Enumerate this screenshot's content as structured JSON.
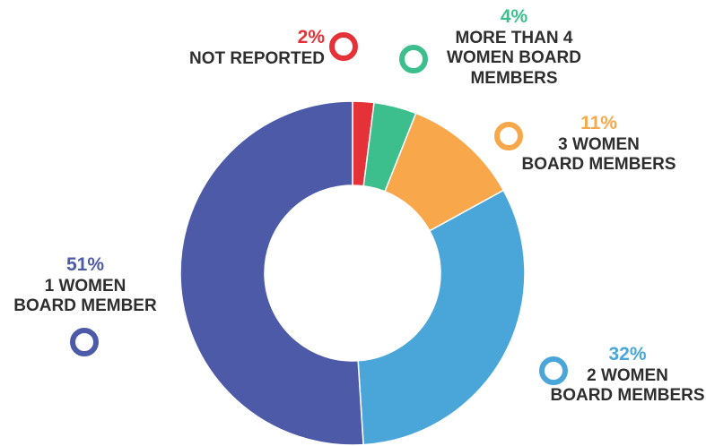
{
  "chart_data": {
    "type": "pie",
    "variant": "donut",
    "categories": [
      "NOT REPORTED",
      "MORE THAN 4 WOMEN BOARD MEMBERS",
      "3 WOMEN BOARD MEMBERS",
      "2 WOMEN BOARD MEMBERS",
      "1 WOMEN BOARD MEMBER"
    ],
    "values": [
      2,
      4,
      11,
      32,
      51
    ],
    "percent_labels": [
      "2%",
      "4%",
      "11%",
      "32%",
      "51%"
    ],
    "label_lines": [
      [
        "NOT REPORTED"
      ],
      [
        "MORE THAN 4",
        "WOMEN BOARD",
        "MEMBERS"
      ],
      [
        "3 WOMEN",
        "BOARD MEMBERS"
      ],
      [
        "2 WOMEN",
        "BOARD MEMBERS"
      ],
      [
        "1 WOMEN",
        "BOARD MEMBER"
      ]
    ],
    "colors": [
      "#e53238",
      "#3cbf8c",
      "#f8a84b",
      "#4aa6d8",
      "#4c5aa8"
    ],
    "title": "",
    "legend": "labels placed around the ring with circle markers"
  }
}
